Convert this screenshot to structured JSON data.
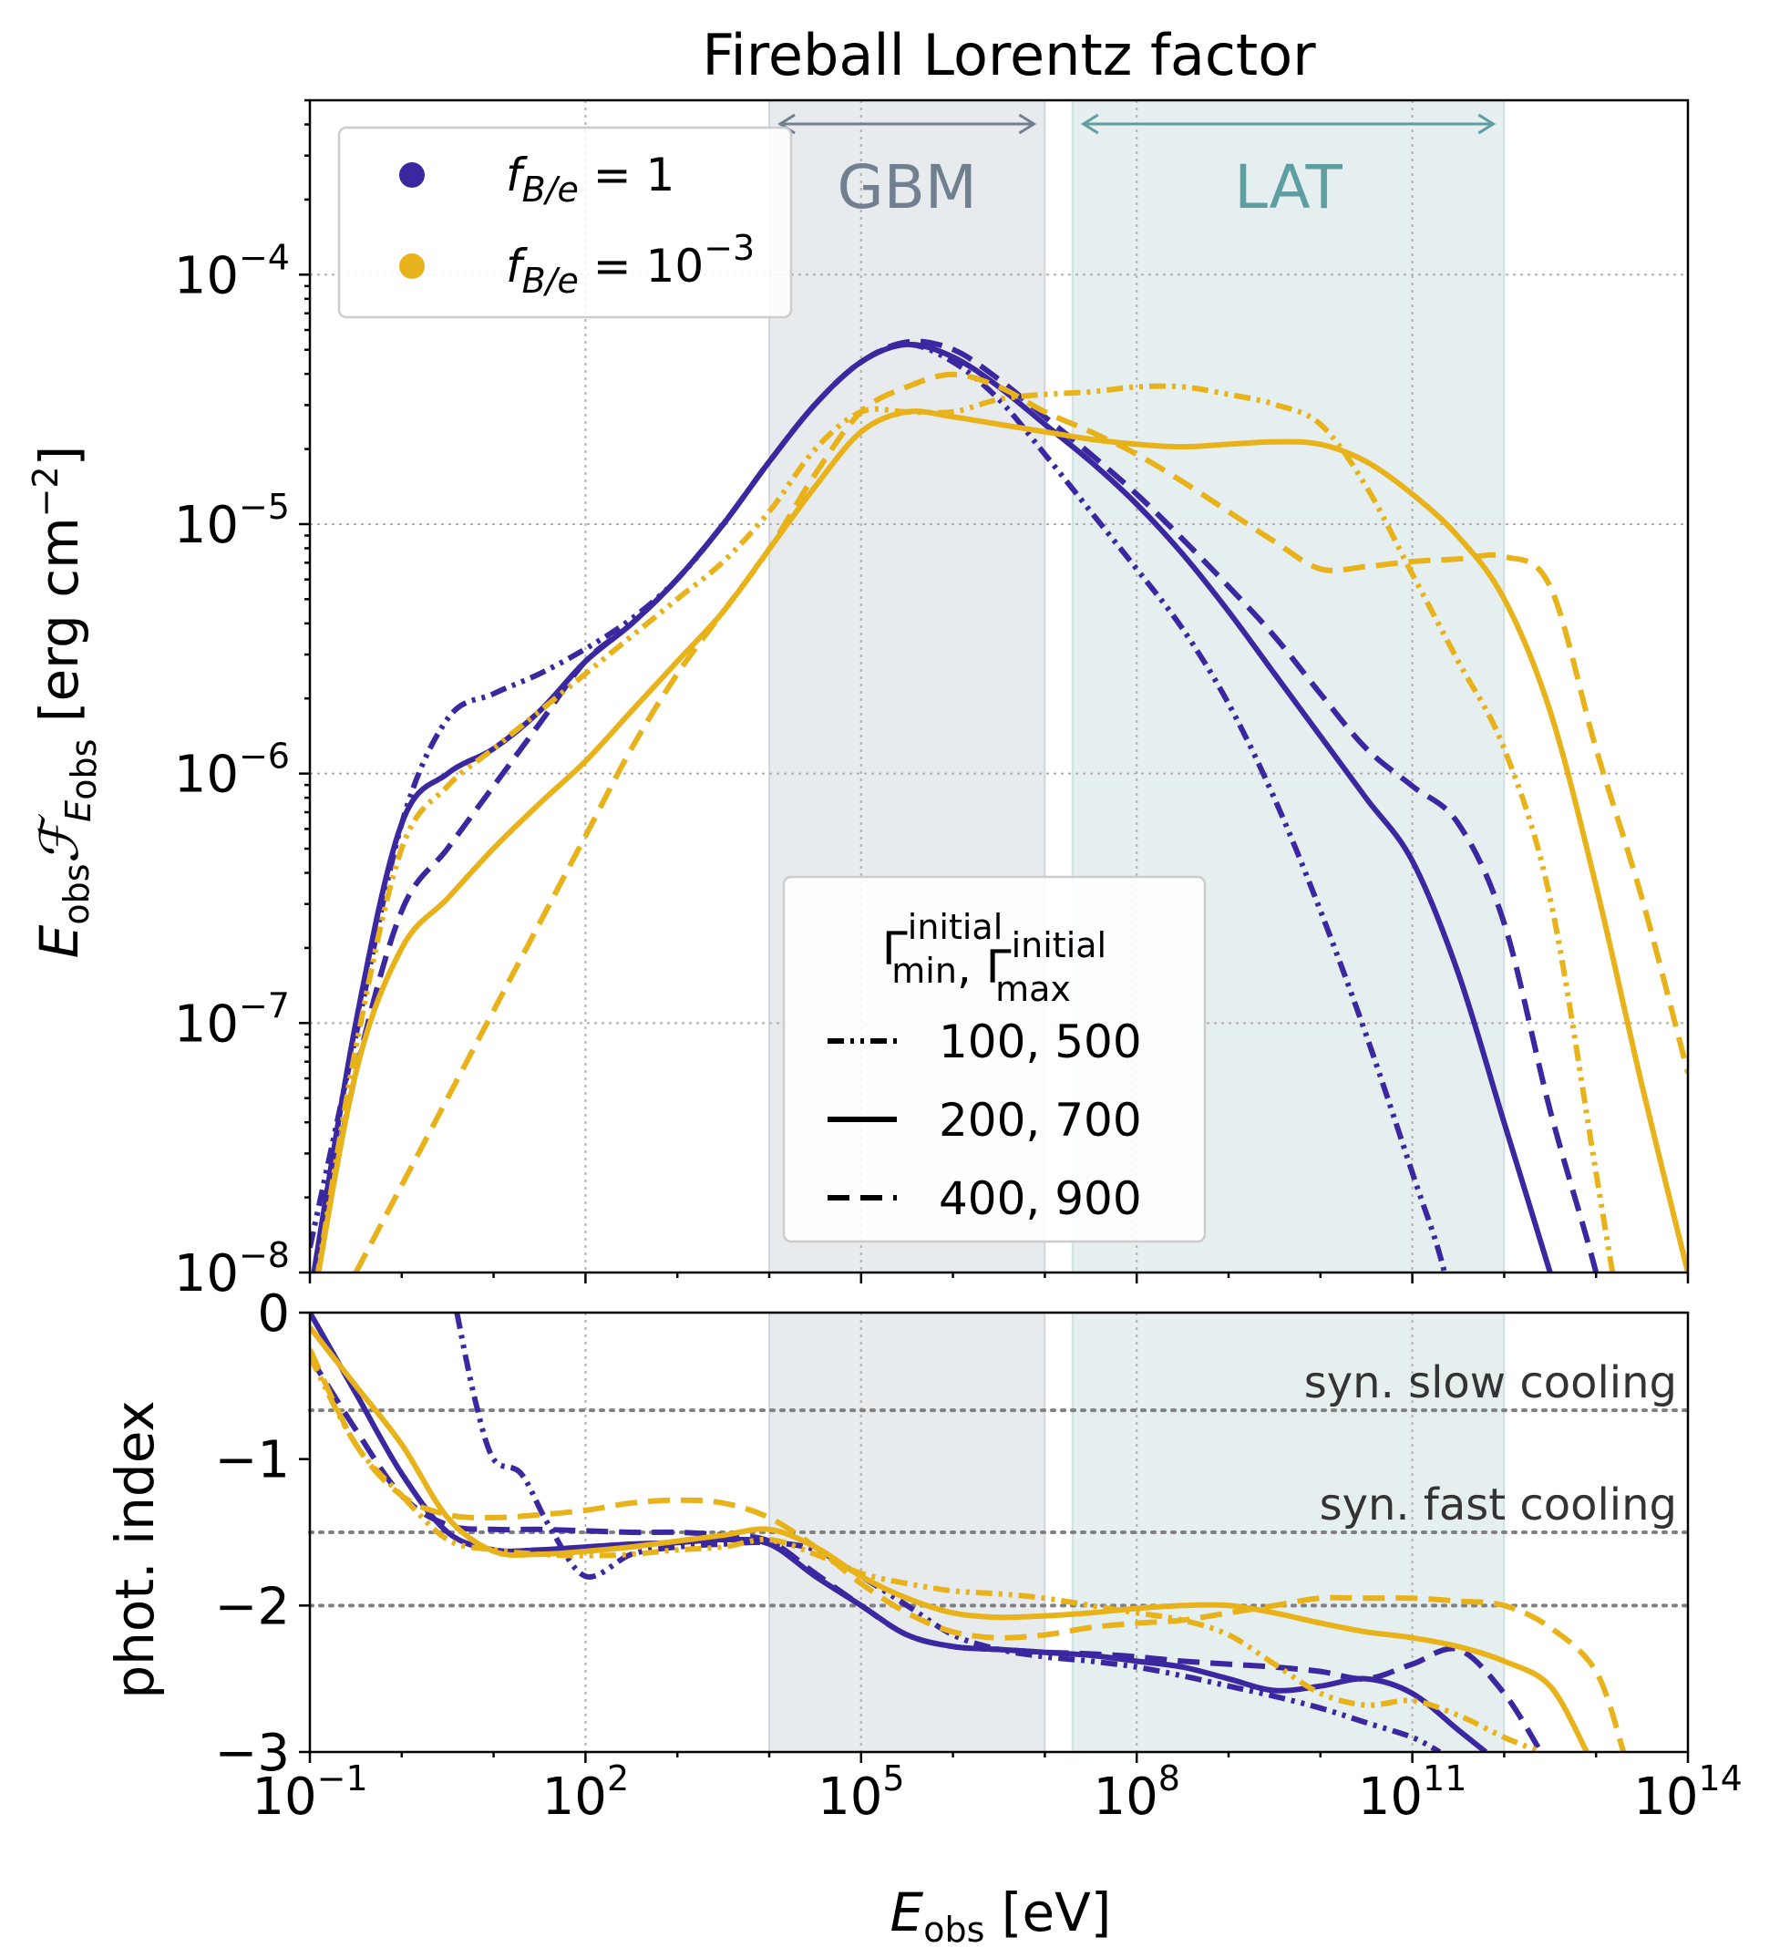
{
  "chart_data": {
    "type": "line",
    "title": "Fireball Lorentz factor",
    "xlabel": "E_obs [eV]",
    "x_scale": "log",
    "xlim": [
      0.1,
      100000000000000.0
    ],
    "x_tick_labels": [
      "10^-1",
      "10^2",
      "10^5",
      "10^8",
      "10^11",
      "10^14"
    ],
    "bands": [
      {
        "name": "GBM",
        "range": [
          10000,
          10000000
        ],
        "color": "#708090"
      },
      {
        "name": "LAT",
        "range": [
          20000000,
          1000000000000.0
        ],
        "color": "#5f9ea0"
      }
    ],
    "color_legend": [
      {
        "label": "f_{B/e} = 1",
        "color": "#3b28a0"
      },
      {
        "label": "f_{B/e} = 10^{-3}",
        "color": "#e8b21a"
      }
    ],
    "style_legend": {
      "title": "Γ_min^initial, Γ_max^initial",
      "entries": [
        {
          "label": "100, 500",
          "style": "dashdotdot"
        },
        {
          "label": "200, 700",
          "style": "solid"
        },
        {
          "label": "400, 900",
          "style": "dashed"
        }
      ]
    },
    "panels": [
      {
        "name": "spectrum",
        "ylabel": "E_obs F_E_obs [erg cm^-2]",
        "y_scale": "log",
        "ylim": [
          1e-08,
          0.0005
        ],
        "y_tick_labels": [
          "10^-8",
          "10^-7",
          "10^-6",
          "10^-5",
          "10^-4"
        ],
        "series": [
          {
            "f": "1",
            "gamma": "100, 500",
            "style": "dashdotdot",
            "color": "#3b28a0",
            "x": [
              -1,
              -0.5,
              0,
              0.5,
              1,
              1.5,
              2,
              2.5,
              3,
              3.5,
              4,
              4.5,
              5,
              5.5,
              6,
              6.5,
              7,
              7.5,
              8,
              8.5,
              9,
              9.5,
              10,
              10.5,
              11,
              11.35,
              11.6
            ],
            "y": [
              -7.9,
              -7.05,
              -6.2,
              -5.78,
              -5.68,
              -5.6,
              -5.5,
              -5.38,
              -5.22,
              -5.0,
              -4.75,
              -4.52,
              -4.35,
              -4.28,
              -4.35,
              -4.5,
              -4.72,
              -4.95,
              -5.18,
              -5.42,
              -5.72,
              -6.1,
              -6.55,
              -7.05,
              -7.6,
              -8.0,
              -8.5
            ]
          },
          {
            "f": "1",
            "gamma": "200, 700",
            "style": "solid",
            "color": "#3b28a0",
            "x": [
              -1,
              -0.5,
              0,
              0.5,
              1,
              1.5,
              2,
              2.5,
              3,
              3.5,
              4,
              4.5,
              5,
              5.5,
              6,
              6.5,
              7,
              7.5,
              8,
              8.5,
              9,
              9.5,
              10,
              10.5,
              11,
              11.5,
              12,
              12.5,
              12.9
            ],
            "y": [
              -8.1,
              -7.0,
              -6.2,
              -6.0,
              -5.9,
              -5.75,
              -5.55,
              -5.4,
              -5.22,
              -5.0,
              -4.75,
              -4.52,
              -4.35,
              -4.28,
              -4.33,
              -4.45,
              -4.6,
              -4.75,
              -4.92,
              -5.12,
              -5.35,
              -5.6,
              -5.85,
              -6.1,
              -6.35,
              -6.8,
              -7.4,
              -8.0,
              -8.5
            ]
          },
          {
            "f": "1",
            "gamma": "400, 900",
            "style": "dashed",
            "color": "#3b28a0",
            "x": [
              -1,
              -0.5,
              0,
              0.5,
              1,
              1.5,
              2,
              2.5,
              3,
              3.5,
              4,
              4.5,
              5,
              5.5,
              6,
              6.5,
              7,
              7.5,
              8,
              8.5,
              9,
              9.5,
              10,
              10.5,
              11,
              11.5,
              12,
              12.5,
              13,
              13.3
            ],
            "y": [
              -8.1,
              -7.2,
              -6.55,
              -6.3,
              -6.05,
              -5.8,
              -5.55,
              -5.4,
              -5.22,
              -5.0,
              -4.75,
              -4.52,
              -4.35,
              -4.27,
              -4.3,
              -4.42,
              -4.57,
              -4.72,
              -4.88,
              -5.06,
              -5.25,
              -5.45,
              -5.68,
              -5.9,
              -6.05,
              -6.2,
              -6.6,
              -7.35,
              -8.0,
              -8.5
            ]
          },
          {
            "f": "1e-3",
            "gamma": "100, 500",
            "style": "dashdotdot",
            "color": "#e8b21a",
            "x": [
              -1,
              -0.5,
              0,
              0.5,
              1,
              1.5,
              2,
              2.5,
              3,
              3.5,
              4,
              4.5,
              5,
              5.5,
              6,
              6.5,
              7,
              7.5,
              8,
              8.5,
              9,
              9.5,
              10,
              10.5,
              11,
              11.5,
              12,
              12.5,
              13,
              13.4
            ],
            "y": [
              -8.2,
              -7.1,
              -6.3,
              -6.05,
              -5.9,
              -5.75,
              -5.6,
              -5.45,
              -5.3,
              -5.15,
              -4.95,
              -4.7,
              -4.55,
              -4.55,
              -4.55,
              -4.5,
              -4.48,
              -4.47,
              -4.45,
              -4.45,
              -4.48,
              -4.52,
              -4.6,
              -4.85,
              -5.2,
              -5.55,
              -5.9,
              -6.5,
              -7.6,
              -8.5
            ]
          },
          {
            "f": "1e-3",
            "gamma": "200, 700",
            "style": "solid",
            "color": "#e8b21a",
            "x": [
              -1,
              -0.5,
              0,
              0.5,
              1,
              1.5,
              2,
              2.5,
              3,
              3.5,
              4,
              4.5,
              5,
              5.5,
              6,
              6.5,
              7,
              7.5,
              8,
              8.5,
              9,
              9.5,
              10,
              10.5,
              11,
              11.5,
              12,
              12.5,
              13,
              13.5,
              14
            ],
            "y": [
              -8.2,
              -7.2,
              -6.7,
              -6.5,
              -6.3,
              -6.12,
              -5.95,
              -5.75,
              -5.55,
              -5.35,
              -5.1,
              -4.85,
              -4.63,
              -4.55,
              -4.57,
              -4.6,
              -4.63,
              -4.66,
              -4.68,
              -4.69,
              -4.68,
              -4.67,
              -4.68,
              -4.75,
              -4.88,
              -5.05,
              -5.3,
              -5.75,
              -6.45,
              -7.25,
              -8.0
            ]
          },
          {
            "f": "1e-3",
            "gamma": "400, 900",
            "style": "dashed",
            "color": "#e8b21a",
            "x": [
              -0.5,
              0,
              0.5,
              1,
              1.5,
              2,
              2.5,
              3,
              3.5,
              4,
              4.5,
              5,
              5.5,
              6,
              6.5,
              7,
              7.5,
              8,
              8.5,
              9,
              9.5,
              10,
              10.5,
              11,
              11.5,
              12,
              12.5,
              13,
              13.5,
              14
            ],
            "y": [
              -8.0,
              -7.65,
              -7.3,
              -6.95,
              -6.6,
              -6.25,
              -5.9,
              -5.6,
              -5.35,
              -5.1,
              -4.8,
              -4.55,
              -4.45,
              -4.4,
              -4.45,
              -4.55,
              -4.63,
              -4.72,
              -4.83,
              -4.95,
              -5.07,
              -5.18,
              -5.17,
              -5.15,
              -5.14,
              -5.13,
              -5.25,
              -5.9,
              -6.5,
              -7.2
            ]
          }
        ]
      },
      {
        "name": "index",
        "ylabel": "phot. index",
        "y_scale": "linear",
        "ylim": [
          -3,
          0
        ],
        "y_tick_labels": [
          "0",
          "−1",
          "−2",
          "−3"
        ],
        "reference_lines": [
          {
            "y": -0.667,
            "label": "syn. slow cooling"
          },
          {
            "y": -1.5,
            "label": "syn. fast cooling"
          },
          {
            "y": -2.0,
            "label": ""
          }
        ],
        "series": [
          {
            "f": "1",
            "gamma": "100, 500",
            "style": "dashdotdot",
            "color": "#3b28a0",
            "x": [
              0.6,
              0.8,
              1,
              1.3,
              1.6,
              2,
              2.5,
              3,
              3.5,
              4,
              4.5,
              5,
              5.5,
              6,
              6.5,
              7,
              7.5,
              8,
              8.5,
              9,
              9.5,
              10,
              10.5,
              11,
              11.3
            ],
            "y": [
              0,
              -0.6,
              -1.0,
              -1.1,
              -1.45,
              -1.8,
              -1.65,
              -1.6,
              -1.58,
              -1.57,
              -1.62,
              -1.8,
              -2.0,
              -2.2,
              -2.3,
              -2.35,
              -2.38,
              -2.42,
              -2.48,
              -2.55,
              -2.62,
              -2.7,
              -2.8,
              -2.9,
              -3.0
            ]
          },
          {
            "f": "1",
            "gamma": "200, 700",
            "style": "solid",
            "color": "#3b28a0",
            "x": [
              -1,
              -0.5,
              0,
              0.5,
              1,
              1.5,
              2,
              2.5,
              3,
              3.5,
              4,
              4.5,
              5,
              5.5,
              6,
              6.5,
              7,
              7.5,
              8,
              8.5,
              9,
              9.5,
              10,
              10.5,
              11,
              11.5,
              11.8
            ],
            "y": [
              0,
              -0.55,
              -1.1,
              -1.5,
              -1.62,
              -1.62,
              -1.6,
              -1.58,
              -1.57,
              -1.55,
              -1.58,
              -1.8,
              -2.0,
              -2.2,
              -2.28,
              -2.3,
              -2.32,
              -2.34,
              -2.38,
              -2.42,
              -2.5,
              -2.58,
              -2.55,
              -2.5,
              -2.6,
              -2.85,
              -3.0
            ]
          },
          {
            "f": "1",
            "gamma": "400, 900",
            "style": "dashed",
            "color": "#3b28a0",
            "x": [
              -1,
              -0.5,
              0,
              0.5,
              1,
              1.5,
              2,
              2.5,
              3,
              3.5,
              4,
              4.5,
              5,
              5.5,
              6,
              6.5,
              7,
              7.5,
              8,
              8.5,
              9,
              9.5,
              10,
              10.5,
              11,
              11.5,
              12,
              12.4
            ],
            "y": [
              -0.3,
              -0.8,
              -1.25,
              -1.45,
              -1.48,
              -1.48,
              -1.49,
              -1.5,
              -1.5,
              -1.52,
              -1.56,
              -1.78,
              -2.0,
              -2.2,
              -2.28,
              -2.3,
              -2.32,
              -2.33,
              -2.35,
              -2.38,
              -2.4,
              -2.42,
              -2.45,
              -2.5,
              -2.4,
              -2.3,
              -2.6,
              -3.0
            ]
          },
          {
            "f": "1e-3",
            "gamma": "100, 500",
            "style": "dashdotdot",
            "color": "#e8b21a",
            "x": [
              -1,
              -0.5,
              0,
              0.5,
              1,
              1.5,
              2,
              2.5,
              3,
              3.5,
              4,
              4.5,
              5,
              5.5,
              6,
              6.5,
              7,
              7.5,
              8,
              8.5,
              9,
              9.5,
              10,
              10.5,
              11,
              11.5,
              12,
              12.4
            ],
            "y": [
              -0.3,
              -0.9,
              -1.25,
              -1.55,
              -1.62,
              -1.65,
              -1.66,
              -1.65,
              -1.62,
              -1.6,
              -1.55,
              -1.65,
              -1.78,
              -1.85,
              -1.9,
              -1.92,
              -1.95,
              -2.0,
              -2.05,
              -2.1,
              -2.2,
              -2.4,
              -2.6,
              -2.68,
              -2.65,
              -2.75,
              -2.9,
              -3.0
            ]
          },
          {
            "f": "1e-3",
            "gamma": "200, 700",
            "style": "solid",
            "color": "#e8b21a",
            "x": [
              -1,
              -0.5,
              0,
              0.5,
              1,
              1.5,
              2,
              2.5,
              3,
              3.5,
              4,
              4.5,
              5,
              5.5,
              6,
              6.5,
              7,
              7.5,
              8,
              8.5,
              9,
              9.5,
              10,
              10.5,
              11,
              11.5,
              12,
              12.5,
              12.9
            ],
            "y": [
              -0.1,
              -0.5,
              -0.9,
              -1.4,
              -1.63,
              -1.65,
              -1.63,
              -1.6,
              -1.56,
              -1.52,
              -1.48,
              -1.6,
              -1.8,
              -1.95,
              -2.05,
              -2.08,
              -2.07,
              -2.05,
              -2.02,
              -2.0,
              -2.0,
              -2.05,
              -2.12,
              -2.18,
              -2.22,
              -2.28,
              -2.38,
              -2.55,
              -3.0
            ]
          },
          {
            "f": "1e-3",
            "gamma": "400, 900",
            "style": "dashed",
            "color": "#e8b21a",
            "x": [
              -1,
              -0.5,
              0,
              0.5,
              1,
              1.5,
              2,
              2.5,
              3,
              3.5,
              4,
              4.5,
              5,
              5.5,
              6,
              6.5,
              7,
              7.5,
              8,
              8.5,
              9,
              9.5,
              10,
              10.5,
              11,
              11.5,
              12,
              12.5,
              13,
              13.3
            ],
            "y": [
              -0.25,
              -0.9,
              -1.25,
              -1.38,
              -1.4,
              -1.38,
              -1.35,
              -1.3,
              -1.28,
              -1.3,
              -1.4,
              -1.6,
              -1.85,
              -2.05,
              -2.18,
              -2.22,
              -2.2,
              -2.15,
              -2.12,
              -2.1,
              -2.05,
              -2.0,
              -1.95,
              -1.95,
              -1.95,
              -1.97,
              -2.0,
              -2.15,
              -2.45,
              -3.0
            ]
          }
        ]
      }
    ]
  }
}
